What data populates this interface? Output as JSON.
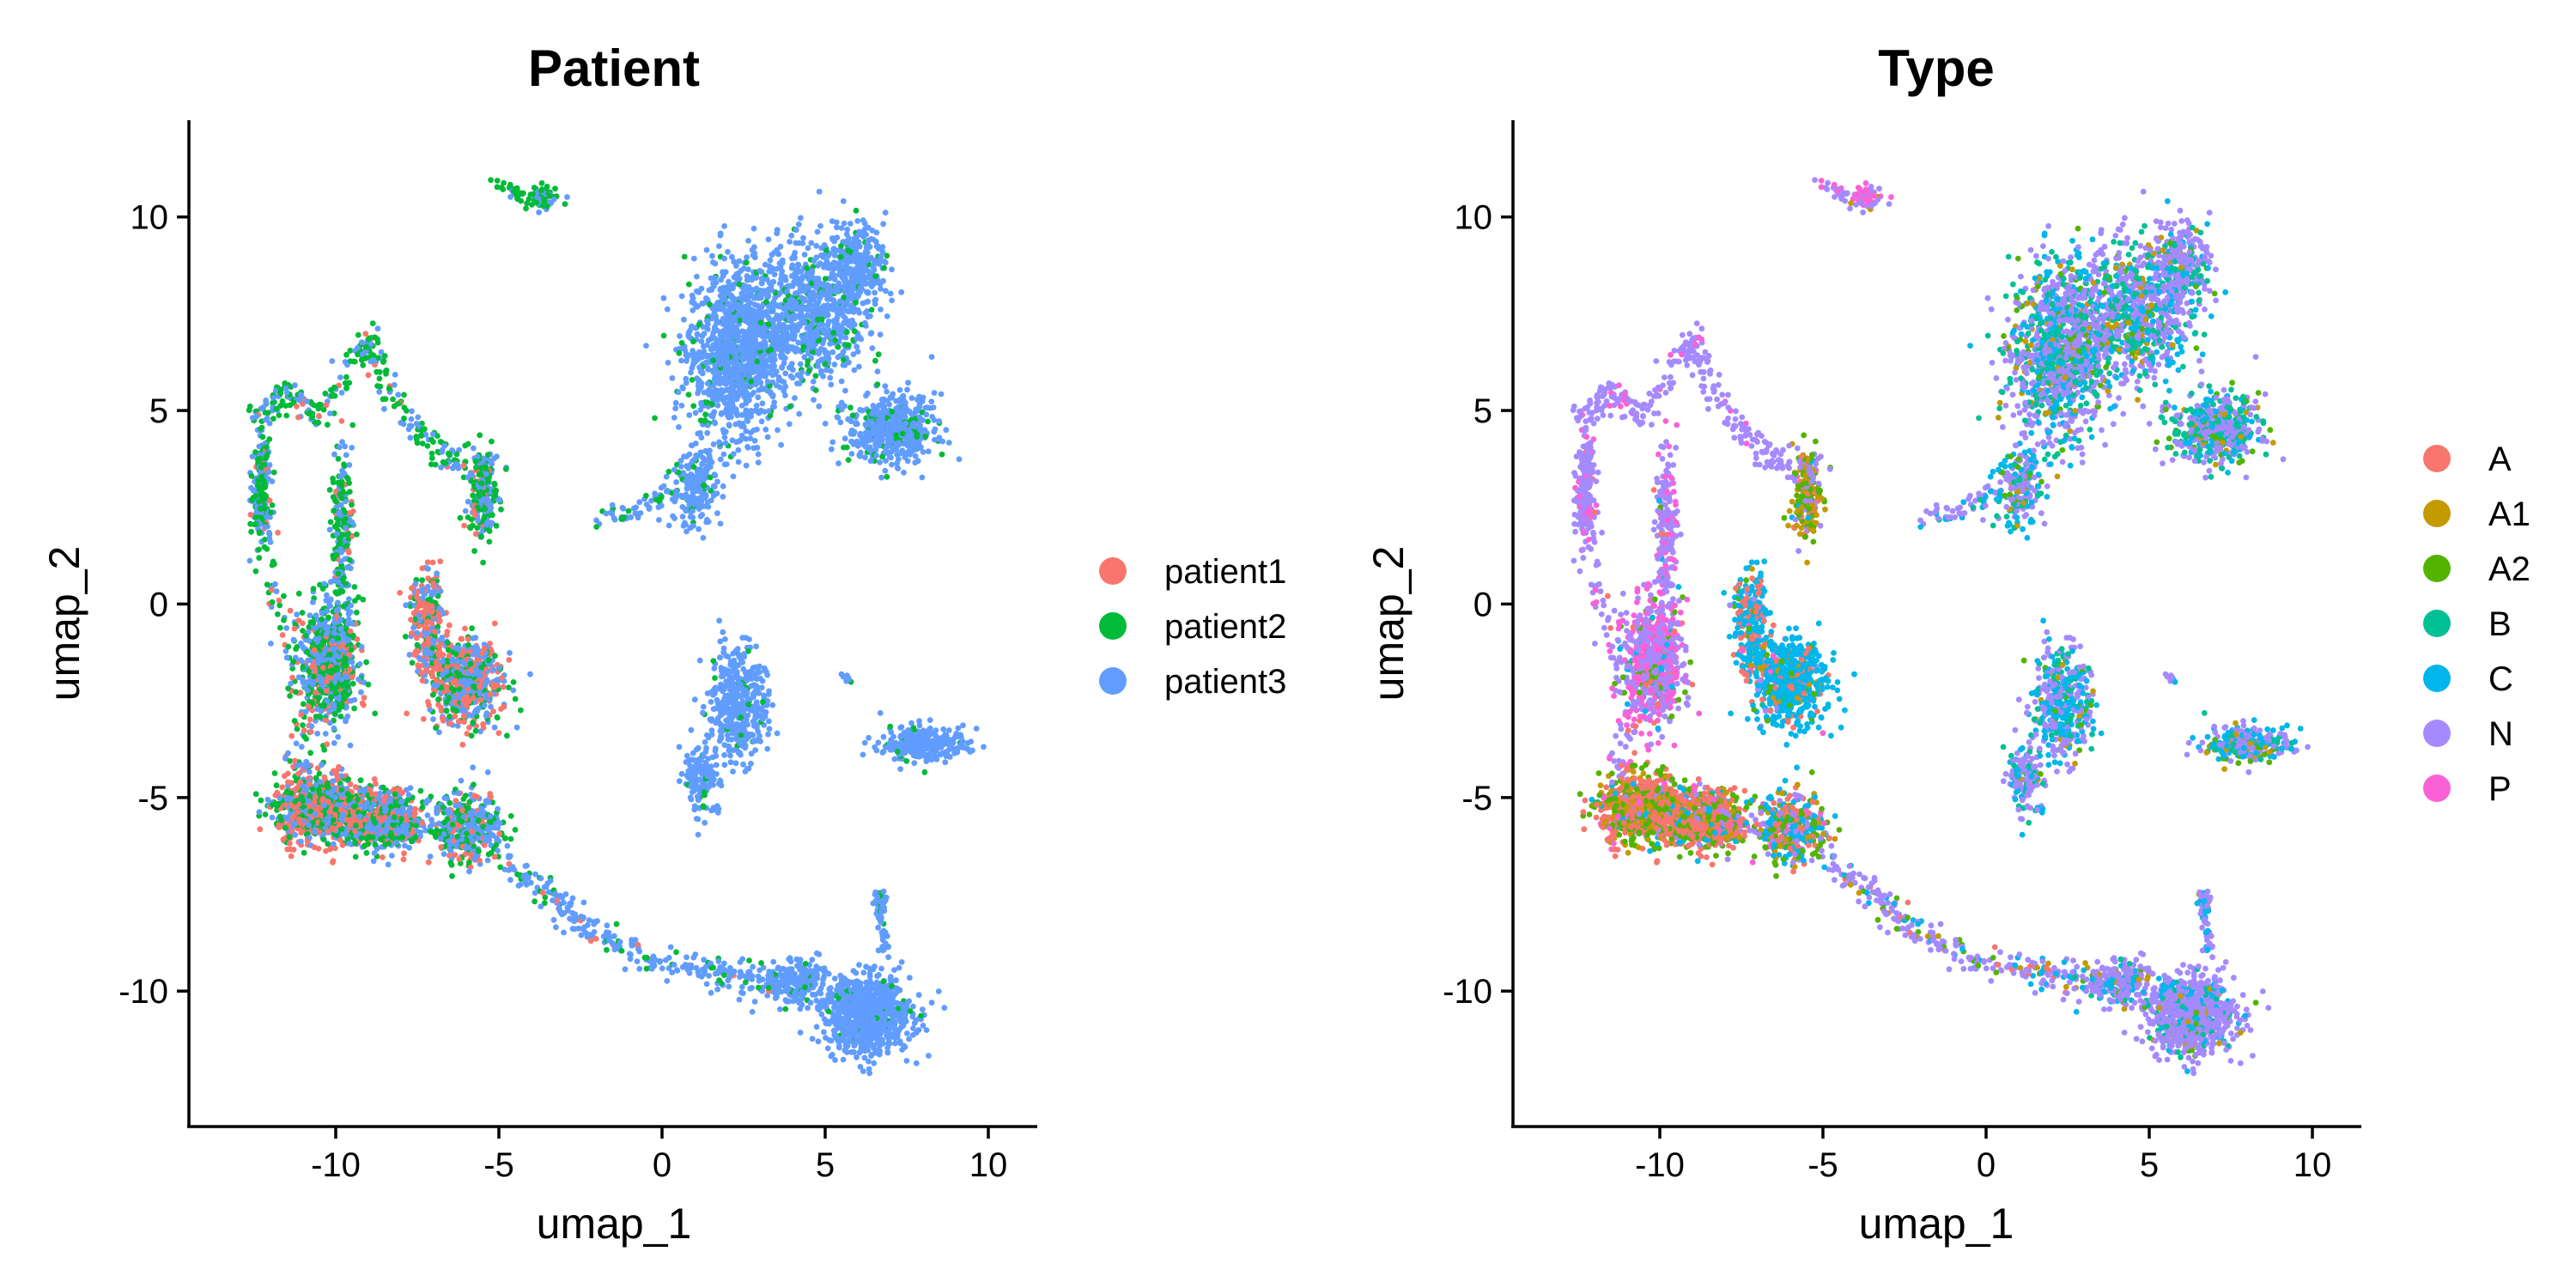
{
  "chart_data": [
    {
      "type": "scatter",
      "title": "Patient",
      "xlabel": "umap_1",
      "ylabel": "umap_2",
      "xlim": [
        -14.5,
        11.5
      ],
      "ylim": [
        -13.5,
        12.5
      ],
      "xticks": [
        -10,
        -5,
        0,
        5,
        10
      ],
      "yticks": [
        -10,
        -5,
        0,
        5,
        10
      ],
      "xtick_labels": [
        "-10",
        "-5",
        "0",
        "5",
        "10"
      ],
      "ytick_labels": [
        "-10",
        "-5",
        "0",
        "5",
        "10"
      ],
      "grid": false,
      "legend_position": "right",
      "series": [
        {
          "name": "patient1",
          "color": "#F8766D"
        },
        {
          "name": "patient2",
          "color": "#00BA38"
        },
        {
          "name": "patient3",
          "color": "#619CFF"
        }
      ]
    },
    {
      "type": "scatter",
      "title": "Type",
      "xlabel": "umap_1",
      "ylabel": "umap_2",
      "xlim": [
        -14.5,
        11.5
      ],
      "ylim": [
        -13.5,
        12.5
      ],
      "xticks": [
        -10,
        -5,
        0,
        5,
        10
      ],
      "yticks": [
        -10,
        -5,
        0,
        5,
        10
      ],
      "xtick_labels": [
        "-10",
        "-5",
        "0",
        "5",
        "10"
      ],
      "ytick_labels": [
        "-10",
        "-5",
        "0",
        "5",
        "10"
      ],
      "grid": false,
      "legend_position": "right",
      "series": [
        {
          "name": "A",
          "color": "#F8766D"
        },
        {
          "name": "A1",
          "color": "#C49A00"
        },
        {
          "name": "A2",
          "color": "#53B400"
        },
        {
          "name": "B",
          "color": "#00C094"
        },
        {
          "name": "C",
          "color": "#00B6EB"
        },
        {
          "name": "N",
          "color": "#A58AFF"
        },
        {
          "name": "P",
          "color": "#FB61D7"
        }
      ]
    }
  ]
}
